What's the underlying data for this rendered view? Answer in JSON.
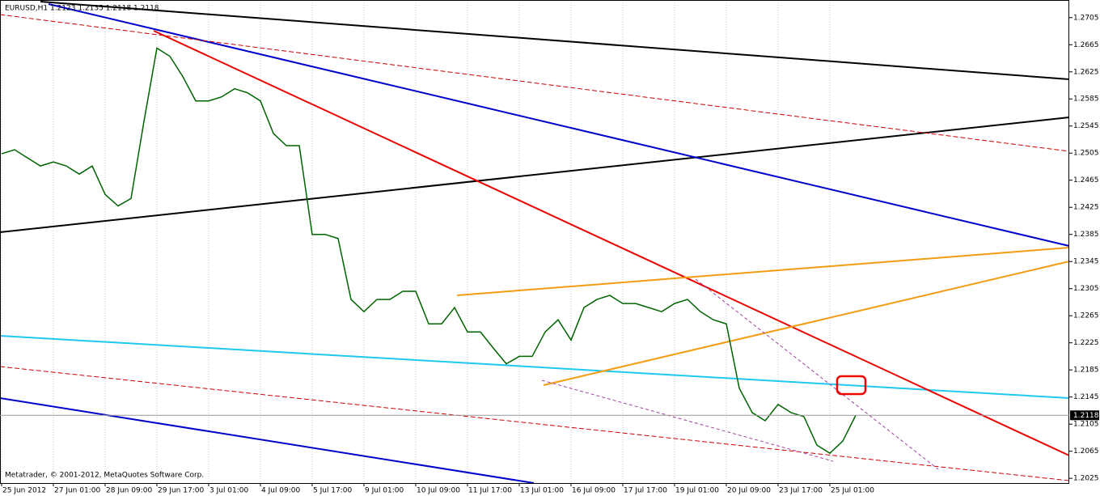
{
  "chart_data": {
    "type": "line",
    "title": "EURUSD,H1 1.2123 1.2135 1.2118 1.2118",
    "footer": "Metatrader, © 2001-2012, MetaQuotes Software Corp.",
    "categories": [
      "25 Jun 2012",
      null,
      null,
      null,
      "27 Jun 01:00",
      null,
      null,
      null,
      "28 Jun 09:00",
      null,
      null,
      null,
      "29 Jun 17:00",
      null,
      null,
      null,
      "3 Jul 01:00",
      null,
      null,
      null,
      "4 Jul 09:00",
      null,
      null,
      null,
      "5 Jul 17:00",
      null,
      null,
      null,
      "9 Jul 01:00",
      null,
      null,
      null,
      "10 Jul 09:00",
      null,
      null,
      null,
      "11 Jul 17:00",
      null,
      null,
      null,
      "13 Jul 01:00",
      null,
      null,
      null,
      "16 Jul 09:00",
      null,
      null,
      null,
      "17 Jul 17:00",
      null,
      null,
      null,
      "19 Jul 01:00",
      null,
      null,
      null,
      "20 Jul 09:00",
      null,
      null,
      null,
      "23 Jul 17:00",
      null,
      null,
      null,
      "25 Jul 01:00",
      null,
      null
    ],
    "values": [
      1.2504,
      1.251,
      1.2498,
      1.2486,
      1.2492,
      1.2486,
      1.2474,
      1.2486,
      1.2444,
      1.2427,
      1.2438,
      1.2552,
      1.266,
      1.2648,
      1.2618,
      1.2582,
      1.2582,
      1.2588,
      1.26,
      1.2594,
      1.2582,
      1.2534,
      1.2516,
      1.2516,
      1.2385,
      1.2385,
      1.2379,
      1.2289,
      1.2271,
      1.2289,
      1.2289,
      1.2301,
      1.2301,
      1.2253,
      1.2253,
      1.2277,
      1.2241,
      1.2241,
      1.2217,
      1.2194,
      1.2205,
      1.2205,
      1.2241,
      1.2259,
      1.2229,
      1.2277,
      1.2289,
      1.2295,
      1.2283,
      1.2283,
      1.2277,
      1.2271,
      1.2283,
      1.2289,
      1.2271,
      1.2259,
      1.2253,
      1.2158,
      1.2122,
      1.211,
      1.2134,
      1.2122,
      1.2116,
      1.2074,
      1.2062,
      1.208,
      1.2118
    ],
    "color": "#006400",
    "current_price": 1.2118,
    "ylim": [
      1.2018,
      1.2731
    ],
    "yticks": [
      1.2025,
      1.2065,
      1.2105,
      1.2145,
      1.2185,
      1.2225,
      1.2265,
      1.2305,
      1.2345,
      1.2385,
      1.2425,
      1.2465,
      1.2505,
      1.2545,
      1.2585,
      1.2625,
      1.2665,
      1.2705
    ],
    "grid": true
  }
}
